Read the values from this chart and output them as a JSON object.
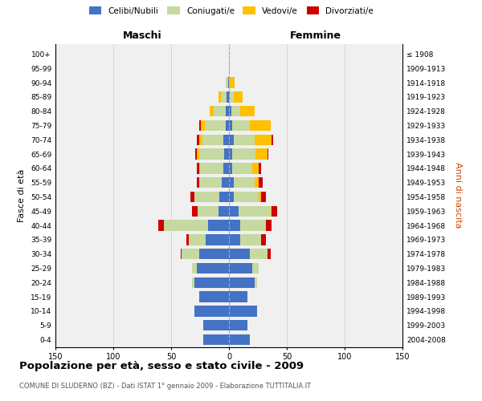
{
  "age_groups": [
    "0-4",
    "5-9",
    "10-14",
    "15-19",
    "20-24",
    "25-29",
    "30-34",
    "35-39",
    "40-44",
    "45-49",
    "50-54",
    "55-59",
    "60-64",
    "65-69",
    "70-74",
    "75-79",
    "80-84",
    "85-89",
    "90-94",
    "95-99",
    "100+"
  ],
  "birth_years": [
    "2004-2008",
    "1999-2003",
    "1994-1998",
    "1989-1993",
    "1984-1988",
    "1979-1983",
    "1974-1978",
    "1969-1973",
    "1964-1968",
    "1959-1963",
    "1954-1958",
    "1949-1953",
    "1944-1948",
    "1939-1943",
    "1934-1938",
    "1929-1933",
    "1924-1928",
    "1919-1923",
    "1914-1918",
    "1909-1913",
    "≤ 1908"
  ],
  "colors": {
    "celibi": "#4472c4",
    "coniugati": "#c5d9a0",
    "vedovi": "#ffc000",
    "divorziati": "#cc0000"
  },
  "maschi": {
    "celibi": [
      22,
      22,
      30,
      26,
      30,
      28,
      26,
      20,
      18,
      9,
      8,
      6,
      5,
      4,
      5,
      3,
      3,
      2,
      1,
      0,
      0
    ],
    "coniugati": [
      0,
      0,
      0,
      0,
      2,
      4,
      15,
      15,
      38,
      18,
      22,
      20,
      20,
      22,
      18,
      18,
      10,
      5,
      2,
      0,
      0
    ],
    "vedovi": [
      0,
      0,
      0,
      0,
      0,
      0,
      0,
      0,
      0,
      0,
      0,
      0,
      1,
      2,
      3,
      3,
      4,
      2,
      0,
      0,
      0
    ],
    "divorziati": [
      0,
      0,
      0,
      0,
      0,
      0,
      1,
      2,
      5,
      5,
      3,
      2,
      2,
      1,
      2,
      2,
      0,
      0,
      0,
      0,
      0
    ]
  },
  "femmine": {
    "celibi": [
      18,
      16,
      24,
      16,
      22,
      20,
      18,
      10,
      10,
      8,
      4,
      4,
      3,
      3,
      4,
      3,
      2,
      1,
      0,
      0,
      0
    ],
    "coniugati": [
      0,
      0,
      0,
      0,
      2,
      6,
      15,
      18,
      22,
      28,
      22,
      18,
      17,
      20,
      18,
      15,
      8,
      3,
      1,
      0,
      0
    ],
    "vedovi": [
      0,
      0,
      0,
      0,
      0,
      0,
      0,
      0,
      0,
      1,
      2,
      4,
      6,
      10,
      15,
      18,
      12,
      8,
      4,
      1,
      0
    ],
    "divorziati": [
      0,
      0,
      0,
      0,
      0,
      0,
      3,
      4,
      5,
      5,
      4,
      3,
      2,
      1,
      1,
      0,
      0,
      0,
      0,
      0,
      0
    ]
  },
  "xlim": 150,
  "title": "Popolazione per età, sesso e stato civile - 2009",
  "subtitle": "COMUNE DI SLUDERNO (BZ) - Dati ISTAT 1° gennaio 2009 - Elaborazione TUTTITALIA.IT",
  "ylabel_left": "Fasce di età",
  "ylabel_right": "Anni di nascita",
  "xlabel_maschi": "Maschi",
  "xlabel_femmine": "Femmine",
  "bg_color": "#f0f0f0",
  "grid_color": "#cccccc",
  "fig_width": 6.0,
  "fig_height": 5.0,
  "dpi": 100
}
